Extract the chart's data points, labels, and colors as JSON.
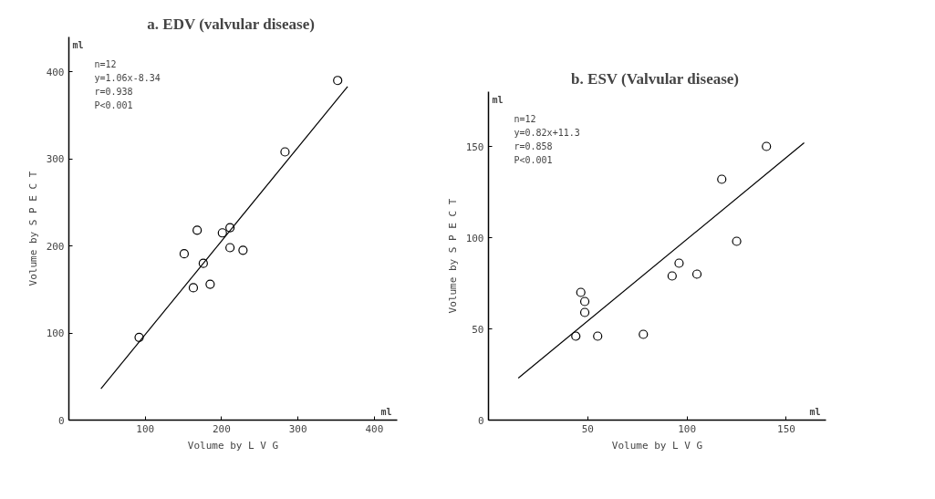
{
  "chart_data": [
    {
      "type": "scatter",
      "title": "a.  EDV (valvular disease)",
      "xlabel": "Volume by L V G",
      "ylabel": "Volume by S P E C T",
      "xlim": [
        0,
        430
      ],
      "ylim": [
        0,
        440
      ],
      "xticks": [
        100,
        200,
        300,
        400
      ],
      "yticks": [
        0,
        100,
        200,
        300,
        400
      ],
      "grid": false,
      "annotations": [
        "n=12",
        "y=1.06x-8.34",
        "r=0.938",
        "P<0.001",
        "ml",
        "ml"
      ],
      "series": [
        {
          "marker": "circle",
          "color": "#000000",
          "x": [
            352,
            283,
            211,
            201,
            168,
            151,
            176,
            211,
            228,
            163,
            185,
            92
          ],
          "values": [
            390,
            308,
            221,
            215,
            218,
            191,
            180,
            198,
            195,
            152,
            156,
            95
          ]
        },
        {
          "type": "line",
          "marker": "none",
          "color": "#000000",
          "x": [
            42,
            365
          ],
          "values": [
            36,
            383
          ]
        }
      ]
    },
    {
      "type": "scatter",
      "title": "b.  ESV (Valvular disease)",
      "xlabel": "Volume by L V G",
      "ylabel": "Volume by S P E C T",
      "xlim": [
        0,
        170
      ],
      "ylim": [
        0,
        180
      ],
      "xticks": [
        50,
        100,
        150
      ],
      "yticks": [
        0,
        50,
        100,
        150
      ],
      "grid": false,
      "annotations": [
        "n=12",
        "y=0.82x+11.3",
        "r=0.858",
        "P<0.001",
        "ml",
        "ml"
      ],
      "series": [
        {
          "marker": "circle",
          "color": "#000000",
          "x": [
            140,
            117.5,
            125,
            96,
            92.5,
            105,
            46.5,
            48.5,
            48.5,
            44,
            55,
            78
          ],
          "values": [
            150,
            132,
            98,
            86,
            79,
            80,
            70,
            65,
            59,
            46,
            46,
            47
          ]
        },
        {
          "type": "line",
          "marker": "none",
          "color": "#000000",
          "x": [
            15,
            159
          ],
          "values": [
            23,
            152
          ]
        }
      ]
    }
  ]
}
